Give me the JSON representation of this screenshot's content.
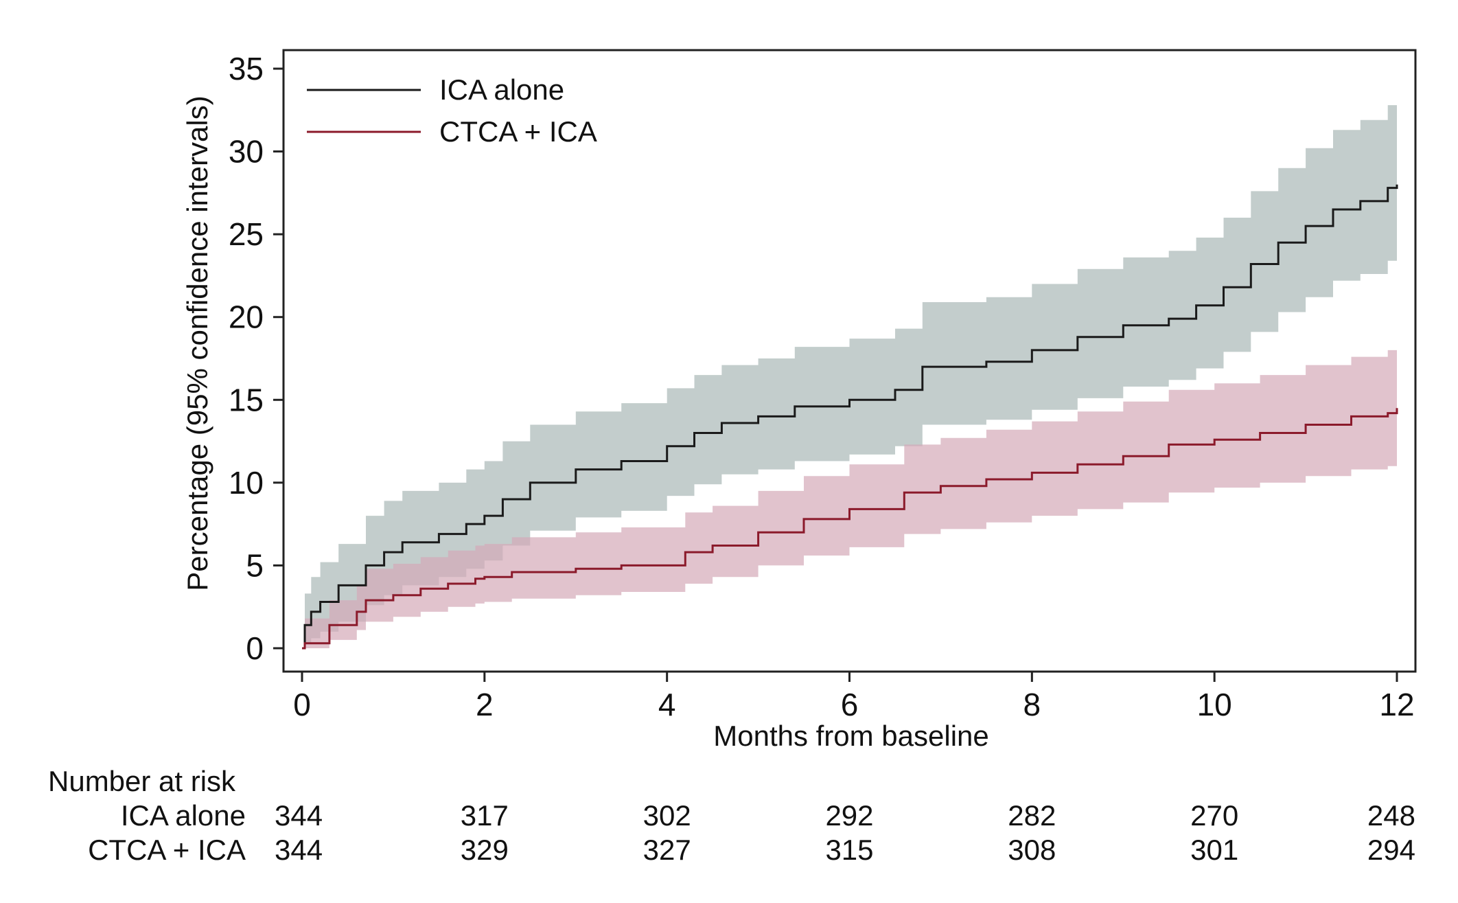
{
  "chart_data": {
    "type": "line",
    "xlabel": "Months from baseline",
    "ylabel": "Percentage (95% confidence intervals)",
    "xlim": [
      0,
      12
    ],
    "ylim": [
      0,
      35
    ],
    "x_ticks": [
      0,
      2,
      4,
      6,
      8,
      10,
      12
    ],
    "y_ticks": [
      0,
      5,
      10,
      15,
      20,
      25,
      30,
      35
    ],
    "grid": false,
    "legend_position": "top-left",
    "series": [
      {
        "name": "ICA alone",
        "color": "#1a1a1a",
        "band_color": "#a9b8b6",
        "x": [
          0,
          0.03,
          0.1,
          0.2,
          0.4,
          0.7,
          0.9,
          1.1,
          1.5,
          1.8,
          2.0,
          2.2,
          2.5,
          3.0,
          3.5,
          4.0,
          4.3,
          4.6,
          5.0,
          5.4,
          6.0,
          6.5,
          6.8,
          7.5,
          8.0,
          8.5,
          9.0,
          9.5,
          9.8,
          10.1,
          10.4,
          10.7,
          11.0,
          11.3,
          11.6,
          11.9,
          12.0
        ],
        "y": [
          0,
          1.4,
          2.2,
          2.8,
          3.8,
          5.0,
          5.8,
          6.4,
          6.9,
          7.5,
          8.0,
          9.0,
          10.0,
          10.8,
          11.3,
          12.2,
          13.0,
          13.6,
          14.0,
          14.6,
          15.0,
          15.6,
          17.0,
          17.3,
          18.0,
          18.8,
          19.5,
          19.9,
          20.7,
          21.8,
          23.2,
          24.5,
          25.5,
          26.5,
          27.0,
          27.8,
          28.0
        ],
        "lower": [
          0,
          0.3,
          0.6,
          1.0,
          1.6,
          2.6,
          3.2,
          3.8,
          4.3,
          4.8,
          5.3,
          6.2,
          7.1,
          7.9,
          8.3,
          9.2,
          9.9,
          10.5,
          10.8,
          11.3,
          11.7,
          12.2,
          13.5,
          13.8,
          14.4,
          15.1,
          15.8,
          16.2,
          16.9,
          17.9,
          19.1,
          20.3,
          21.2,
          22.2,
          22.6,
          23.4,
          23.5
        ],
        "upper": [
          0,
          3.3,
          4.3,
          5.2,
          6.3,
          8.0,
          8.9,
          9.5,
          10.0,
          10.8,
          11.3,
          12.5,
          13.5,
          14.3,
          14.8,
          15.7,
          16.5,
          17.1,
          17.5,
          18.2,
          18.7,
          19.3,
          20.9,
          21.2,
          22.0,
          22.9,
          23.6,
          24.0,
          24.8,
          26.0,
          27.6,
          29.0,
          30.2,
          31.3,
          31.9,
          32.8,
          33.0
        ]
      },
      {
        "name": "CTCA + ICA",
        "color": "#8b1a2b",
        "band_color": "#d4a9b8",
        "x": [
          0,
          0.03,
          0.3,
          0.6,
          0.7,
          1.0,
          1.3,
          1.6,
          1.9,
          2.0,
          2.3,
          3.0,
          3.5,
          4.0,
          4.2,
          4.5,
          5.0,
          5.5,
          6.0,
          6.6,
          7.0,
          7.5,
          8.0,
          8.5,
          9.0,
          9.5,
          10.0,
          10.5,
          11.0,
          11.5,
          11.9,
          12.0
        ],
        "y": [
          0,
          0.3,
          1.4,
          2.2,
          2.9,
          3.2,
          3.6,
          3.9,
          4.2,
          4.3,
          4.6,
          4.8,
          5.0,
          5.0,
          5.8,
          6.2,
          7.0,
          7.8,
          8.4,
          9.4,
          9.8,
          10.2,
          10.6,
          11.1,
          11.6,
          12.3,
          12.6,
          13.0,
          13.5,
          14.0,
          14.2,
          14.5
        ],
        "lower": [
          0,
          0.0,
          0.5,
          1.1,
          1.6,
          1.9,
          2.2,
          2.5,
          2.7,
          2.8,
          3.0,
          3.2,
          3.4,
          3.4,
          3.9,
          4.3,
          5.0,
          5.6,
          6.1,
          6.9,
          7.2,
          7.6,
          8.0,
          8.4,
          8.8,
          9.4,
          9.7,
          10.0,
          10.4,
          10.8,
          11.0,
          11.3
        ],
        "upper": [
          0,
          1.8,
          2.9,
          3.8,
          4.8,
          5.1,
          5.5,
          5.9,
          6.2,
          6.3,
          6.7,
          7.0,
          7.3,
          7.3,
          8.2,
          8.6,
          9.5,
          10.4,
          11.1,
          12.3,
          12.7,
          13.2,
          13.7,
          14.3,
          14.9,
          15.6,
          16.0,
          16.5,
          17.1,
          17.6,
          18.0,
          18.6
        ]
      }
    ],
    "risk_table": {
      "title": "Number at risk",
      "times": [
        0,
        2,
        4,
        6,
        8,
        10,
        12
      ],
      "rows": [
        {
          "label": "ICA alone",
          "counts": [
            "344",
            "317",
            "302",
            "292",
            "282",
            "270",
            "248"
          ]
        },
        {
          "label": "CTCA + ICA",
          "counts": [
            "344",
            "329",
            "327",
            "315",
            "308",
            "301",
            "294"
          ]
        }
      ]
    }
  }
}
